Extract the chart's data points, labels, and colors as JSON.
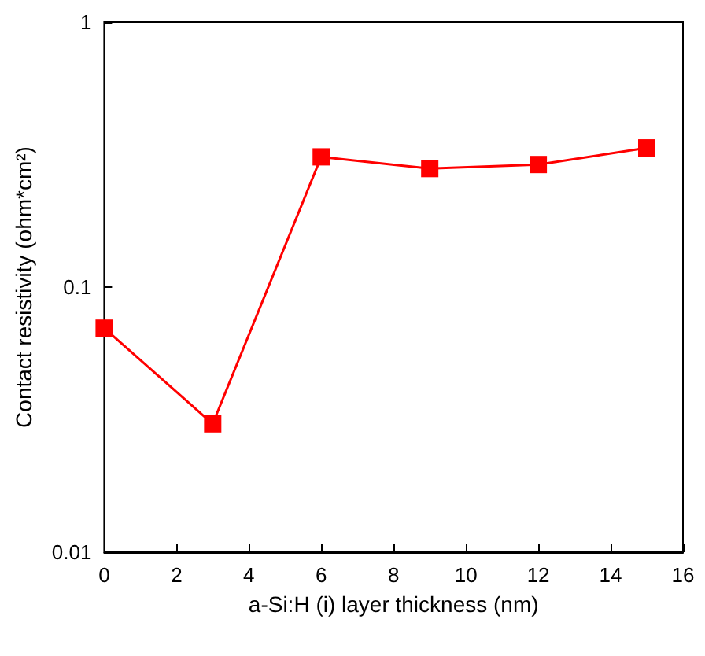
{
  "chart_data": {
    "type": "line",
    "xlabel": "a-Si:H (i) layer thickness (nm)",
    "ylabel": "Contact resistivity (ohm*cm²)",
    "x": [
      0,
      3,
      6,
      9,
      12,
      15
    ],
    "series": [
      {
        "color": "#ff0000",
        "values": [
          0.07,
          0.0305,
          0.31,
          0.28,
          0.29,
          0.335
        ]
      }
    ],
    "xlim": [
      0,
      16
    ],
    "xticks": [
      0,
      2,
      4,
      6,
      8,
      10,
      12,
      14,
      16
    ],
    "ylim": [
      0.01,
      1
    ],
    "yticks": [
      0.01,
      0.1,
      1
    ],
    "log": "y",
    "grid": false,
    "marker": "square",
    "line_style": "solid"
  }
}
